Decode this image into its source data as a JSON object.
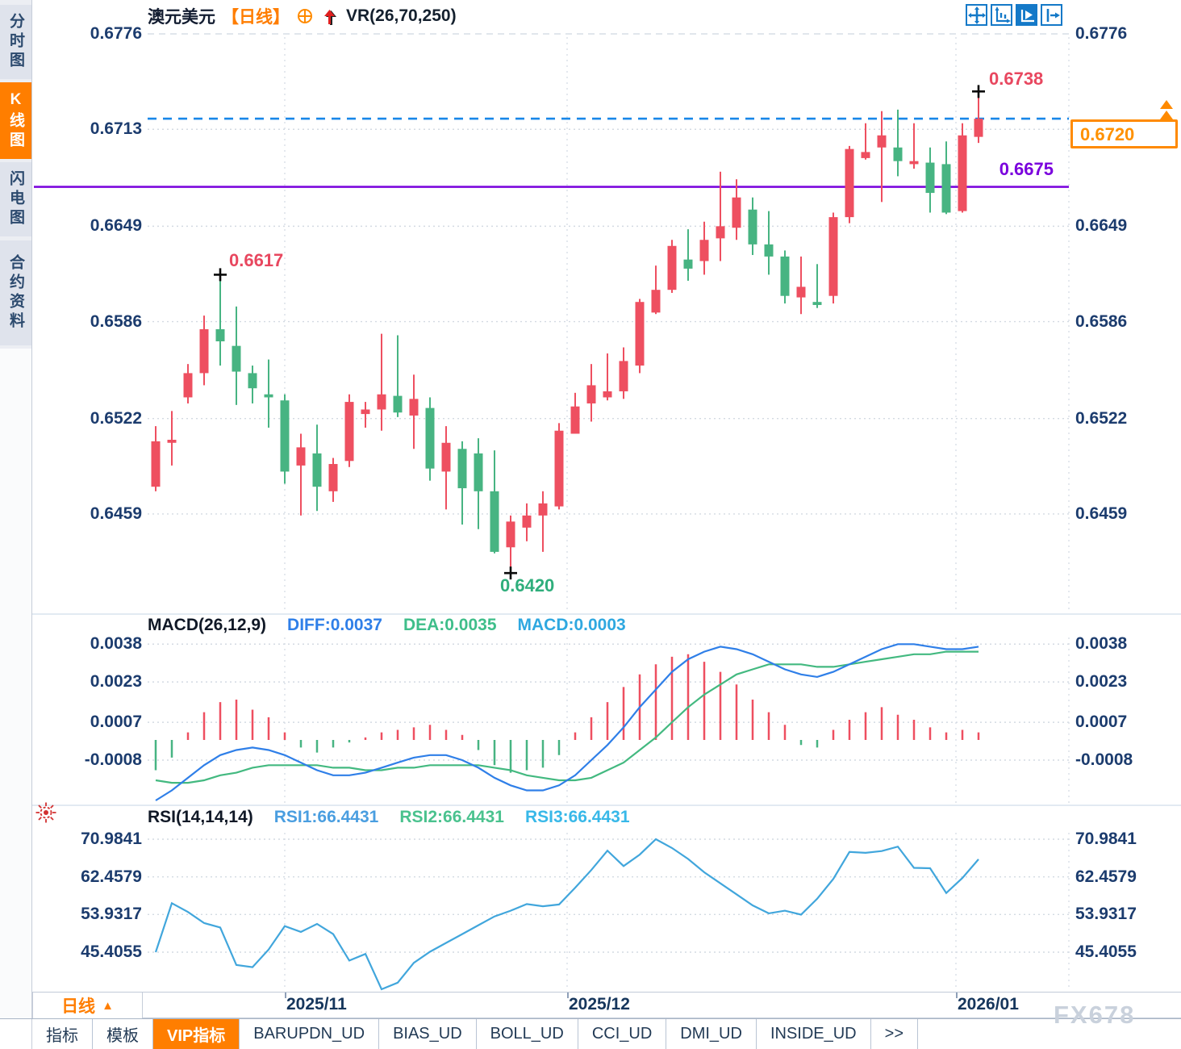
{
  "header": {
    "symbol": "澳元美元",
    "period": "【日线】",
    "indicator": "VR(26,70,250)"
  },
  "sidebar": {
    "items": [
      {
        "label": "分时图",
        "active": false
      },
      {
        "label": "K线图",
        "active": true
      },
      {
        "label": "闪电图",
        "active": false
      },
      {
        "label": "合约资料",
        "active": false
      }
    ]
  },
  "toolbar": {
    "buttons": [
      {
        "name": "pan",
        "active": false
      },
      {
        "name": "fit-scale",
        "active": false
      },
      {
        "name": "auto-scale",
        "active": true
      },
      {
        "name": "shift-right",
        "active": false
      }
    ]
  },
  "main_chart": {
    "y_axis_labels": [
      "0.6776",
      "0.6713",
      "0.6649",
      "0.6586",
      "0.6522",
      "0.6459"
    ],
    "annotations": {
      "session_high": "0.6738",
      "swing_high": "0.6617",
      "swing_low": "0.6420",
      "support_price": "0.6675",
      "current_price": "0.6720"
    }
  },
  "macd_panel": {
    "title": "MACD(26,12,9)",
    "values": [
      {
        "label": "DIFF:0.0037",
        "color": "#2f7fe8"
      },
      {
        "label": "DEA:0.0035",
        "color": "#3fbe8a"
      },
      {
        "label": "MACD:0.0003",
        "color": "#2fa8e0"
      }
    ],
    "y_axis_labels": [
      "0.0038",
      "0.0023",
      "0.0007",
      "-0.0008"
    ]
  },
  "rsi_panel": {
    "title": "RSI(14,14,14)",
    "values": [
      {
        "label": "RSI1:66.4431",
        "color": "#4a9ee0"
      },
      {
        "label": "RSI2:66.4431",
        "color": "#4ac28e"
      },
      {
        "label": "RSI3:66.4431",
        "color": "#38b8e8"
      }
    ],
    "y_axis_labels": [
      "70.9841",
      "62.4579",
      "53.9317",
      "45.4055"
    ]
  },
  "time_axis": {
    "period_label": "日线",
    "labels": [
      "2025/11",
      "2025/12",
      "2026/01"
    ]
  },
  "tabs": {
    "items": [
      {
        "label": "指标",
        "active": false
      },
      {
        "label": "模板",
        "active": false
      },
      {
        "label": "VIP指标",
        "active": true
      },
      {
        "label": "BARUPDN_UD",
        "active": false
      },
      {
        "label": "BIAS_UD",
        "active": false
      },
      {
        "label": "BOLL_UD",
        "active": false
      },
      {
        "label": "CCI_UD",
        "active": false
      },
      {
        "label": "DMI_UD",
        "active": false
      },
      {
        "label": "INSIDE_UD",
        "active": false
      },
      {
        "label": ">>",
        "active": false
      }
    ]
  },
  "watermark": "FX678",
  "colors": {
    "up": "#ee4f60",
    "down": "#47b482",
    "diff_line": "#2f7fe8",
    "dea_line": "#43b980",
    "rsi_line": "#41a6dc",
    "current_line": "#1887e8",
    "support_line": "#7c08dd",
    "accent": "#ff7e00",
    "ann_red": "#e8475f",
    "ann_green": "#2fae7c",
    "ann_purple": "#7a00dd"
  },
  "chart_data": [
    {
      "type": "candlestick",
      "symbol": "澳元美元",
      "period": "日线",
      "y_ticks": [
        0.6776,
        0.6713,
        0.6649,
        0.6586,
        0.6522,
        0.6459
      ],
      "x_ticks": [
        "2025/11",
        "2025/12",
        "2026/01"
      ],
      "current_price": 0.672,
      "support_line": 0.6675,
      "markers": [
        {
          "type": "high",
          "index": 51,
          "price": 0.6738
        },
        {
          "type": "high",
          "index": 4,
          "price": 0.6617
        },
        {
          "type": "low",
          "index": 22,
          "price": 0.642
        }
      ],
      "candles": [
        [
          0.6477,
          0.6517,
          0.6474,
          0.6507
        ],
        [
          0.6506,
          0.6527,
          0.6491,
          0.6508
        ],
        [
          0.6536,
          0.6558,
          0.6532,
          0.6552
        ],
        [
          0.6552,
          0.659,
          0.6544,
          0.6581
        ],
        [
          0.6581,
          0.6617,
          0.6557,
          0.6573
        ],
        [
          0.657,
          0.6596,
          0.6531,
          0.6553
        ],
        [
          0.6552,
          0.6557,
          0.6532,
          0.6542
        ],
        [
          0.6538,
          0.6561,
          0.6516,
          0.6536
        ],
        [
          0.6534,
          0.6538,
          0.6479,
          0.6487
        ],
        [
          0.6491,
          0.6512,
          0.6458,
          0.6503
        ],
        [
          0.6499,
          0.6518,
          0.6461,
          0.6477
        ],
        [
          0.6474,
          0.6496,
          0.6467,
          0.6492
        ],
        [
          0.6494,
          0.6538,
          0.649,
          0.6533
        ],
        [
          0.6525,
          0.6533,
          0.6516,
          0.6528
        ],
        [
          0.6528,
          0.6578,
          0.6514,
          0.6538
        ],
        [
          0.6537,
          0.6577,
          0.6523,
          0.6526
        ],
        [
          0.6524,
          0.6551,
          0.6502,
          0.6535
        ],
        [
          0.6529,
          0.6536,
          0.6481,
          0.6489
        ],
        [
          0.6487,
          0.6517,
          0.6462,
          0.6506
        ],
        [
          0.6502,
          0.6507,
          0.6452,
          0.6476
        ],
        [
          0.6499,
          0.6509,
          0.6449,
          0.6474
        ],
        [
          0.6474,
          0.6501,
          0.6433,
          0.6434
        ],
        [
          0.6437,
          0.6458,
          0.642,
          0.6454
        ],
        [
          0.645,
          0.6466,
          0.6441,
          0.6458
        ],
        [
          0.6458,
          0.6474,
          0.6434,
          0.6466
        ],
        [
          0.6464,
          0.6519,
          0.6462,
          0.6514
        ],
        [
          0.6512,
          0.6539,
          0.6512,
          0.653
        ],
        [
          0.6532,
          0.6558,
          0.652,
          0.6544
        ],
        [
          0.6536,
          0.6565,
          0.6534,
          0.654
        ],
        [
          0.654,
          0.6569,
          0.6535,
          0.656
        ],
        [
          0.6557,
          0.6601,
          0.6552,
          0.6599
        ],
        [
          0.6592,
          0.6623,
          0.6591,
          0.6607
        ],
        [
          0.6607,
          0.664,
          0.6605,
          0.6636
        ],
        [
          0.6627,
          0.6647,
          0.6613,
          0.6621
        ],
        [
          0.6626,
          0.6652,
          0.6617,
          0.664
        ],
        [
          0.6641,
          0.6685,
          0.6626,
          0.6649
        ],
        [
          0.6648,
          0.668,
          0.664,
          0.6668
        ],
        [
          0.666,
          0.6668,
          0.663,
          0.6637
        ],
        [
          0.6637,
          0.6659,
          0.6617,
          0.6629
        ],
        [
          0.6629,
          0.6633,
          0.6598,
          0.6603
        ],
        [
          0.6602,
          0.6629,
          0.6591,
          0.6609
        ],
        [
          0.6599,
          0.6624,
          0.6595,
          0.6597
        ],
        [
          0.6603,
          0.6658,
          0.6598,
          0.6655
        ],
        [
          0.6655,
          0.6702,
          0.6651,
          0.67
        ],
        [
          0.6694,
          0.6717,
          0.6693,
          0.6698
        ],
        [
          0.6701,
          0.6725,
          0.6665,
          0.6709
        ],
        [
          0.6701,
          0.6726,
          0.6682,
          0.6692
        ],
        [
          0.669,
          0.6717,
          0.6687,
          0.6692
        ],
        [
          0.6691,
          0.6701,
          0.6658,
          0.6671
        ],
        [
          0.669,
          0.6705,
          0.6657,
          0.6658
        ],
        [
          0.6659,
          0.6717,
          0.6658,
          0.6709
        ],
        [
          0.6708,
          0.6738,
          0.6704,
          0.672
        ]
      ]
    },
    {
      "type": "macd",
      "title": "MACD(26,12,9)",
      "params": [
        26,
        12,
        9
      ],
      "diff": 0.0037,
      "dea": 0.0035,
      "macd": 0.0003,
      "y_ticks": [
        0.0038,
        0.0023,
        0.0007,
        -0.0008
      ],
      "histogram": [
        -0.0012,
        -0.0007,
        0.0003,
        0.0011,
        0.0015,
        0.0016,
        0.0012,
        0.0009,
        0.0003,
        -0.0003,
        -0.0005,
        -0.0003,
        -0.0001,
        0.0001,
        0.0003,
        0.0004,
        0.0005,
        0.0006,
        0.0004,
        0.0002,
        -0.0004,
        -0.001,
        -0.0013,
        -0.0012,
        -0.0011,
        -0.0006,
        0.0003,
        0.0009,
        0.0015,
        0.0021,
        0.0026,
        0.003,
        0.0033,
        0.0034,
        0.0031,
        0.0027,
        0.0022,
        0.0016,
        0.0011,
        0.0006,
        -0.0002,
        -0.0003,
        0.0004,
        0.0008,
        0.0011,
        0.0013,
        0.001,
        0.0008,
        0.0005,
        0.0003,
        0.0004,
        0.0003
      ],
      "diff_series": [
        -0.0024,
        -0.002,
        -0.0015,
        -0.001,
        -0.0006,
        -0.0004,
        -0.0003,
        -0.0004,
        -0.0006,
        -0.0009,
        -0.0012,
        -0.0014,
        -0.0014,
        -0.0013,
        -0.0011,
        -0.0009,
        -0.0007,
        -0.0006,
        -0.0006,
        -0.0008,
        -0.0011,
        -0.0015,
        -0.0018,
        -0.002,
        -0.002,
        -0.0018,
        -0.0014,
        -0.0008,
        -0.0002,
        0.0005,
        0.0013,
        0.002,
        0.0027,
        0.0032,
        0.0035,
        0.0037,
        0.0036,
        0.0034,
        0.0031,
        0.0028,
        0.0026,
        0.0025,
        0.0027,
        0.003,
        0.0033,
        0.0036,
        0.0038,
        0.0038,
        0.0037,
        0.0036,
        0.0036,
        0.0037
      ],
      "dea_series": [
        -0.0016,
        -0.0017,
        -0.0017,
        -0.0016,
        -0.0014,
        -0.0013,
        -0.0011,
        -0.001,
        -0.001,
        -0.001,
        -0.001,
        -0.0011,
        -0.0011,
        -0.0012,
        -0.0012,
        -0.0011,
        -0.0011,
        -0.001,
        -0.001,
        -0.001,
        -0.001,
        -0.0011,
        -0.0012,
        -0.0014,
        -0.0015,
        -0.0016,
        -0.0016,
        -0.0015,
        -0.0012,
        -0.0009,
        -0.0004,
        0.0001,
        0.0007,
        0.0013,
        0.0018,
        0.0022,
        0.0026,
        0.0028,
        0.003,
        0.003,
        0.003,
        0.0029,
        0.0029,
        0.003,
        0.0031,
        0.0032,
        0.0033,
        0.0034,
        0.0034,
        0.0035,
        0.0035,
        0.0035
      ]
    },
    {
      "type": "rsi",
      "title": "RSI(14,14,14)",
      "rsi1": 66.4431,
      "rsi2": 66.4431,
      "rsi3": 66.4431,
      "y_ticks": [
        70.9841,
        62.4579,
        53.9317,
        45.4055
      ],
      "series": [
        45.4,
        56.5,
        54.5,
        52.0,
        51.0,
        42.5,
        42.0,
        46.0,
        51.3,
        50.0,
        51.8,
        49.5,
        43.5,
        45.0,
        37.0,
        38.5,
        43.0,
        45.5,
        47.5,
        49.5,
        51.5,
        53.5,
        54.8,
        56.3,
        55.8,
        56.2,
        60.0,
        64.0,
        68.4,
        64.9,
        67.5,
        70.98,
        69.0,
        66.5,
        63.5,
        61.0,
        58.5,
        56.0,
        54.2,
        54.8,
        53.9,
        57.5,
        62.0,
        68.1,
        67.9,
        68.3,
        69.3,
        64.5,
        64.4,
        58.8,
        62.2,
        66.4431
      ]
    }
  ]
}
